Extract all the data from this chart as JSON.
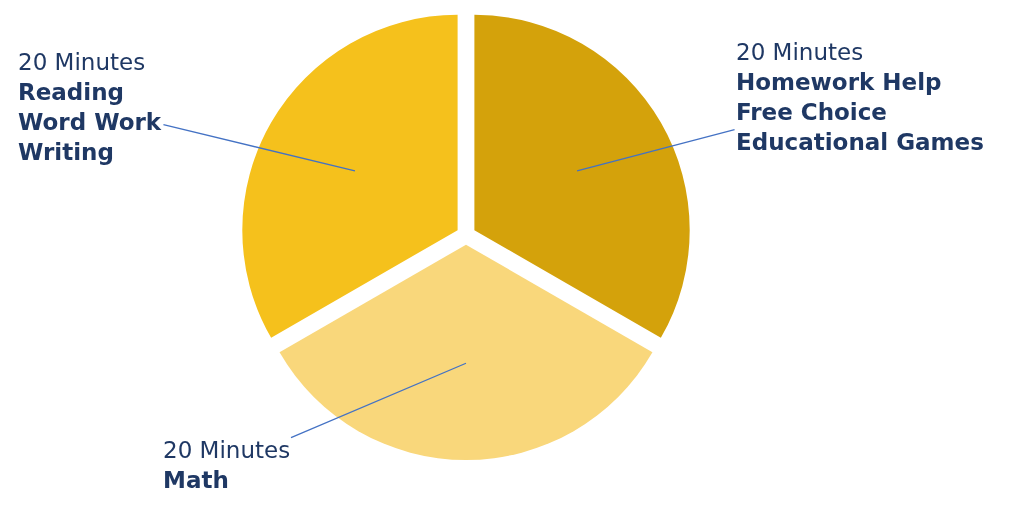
{
  "chart_data": {
    "type": "pie",
    "categories": [
      "Homework Help\nFree Choice\nEducational Games",
      "Math",
      "Reading\nWord Work\nWriting"
    ],
    "values": [
      20,
      20,
      20
    ],
    "value_labels": [
      "20 Minutes",
      "20 Minutes",
      "20 Minutes"
    ],
    "colors": [
      "#d4a20b",
      "#f9d77b",
      "#f5c11c"
    ],
    "legend": false
  }
}
